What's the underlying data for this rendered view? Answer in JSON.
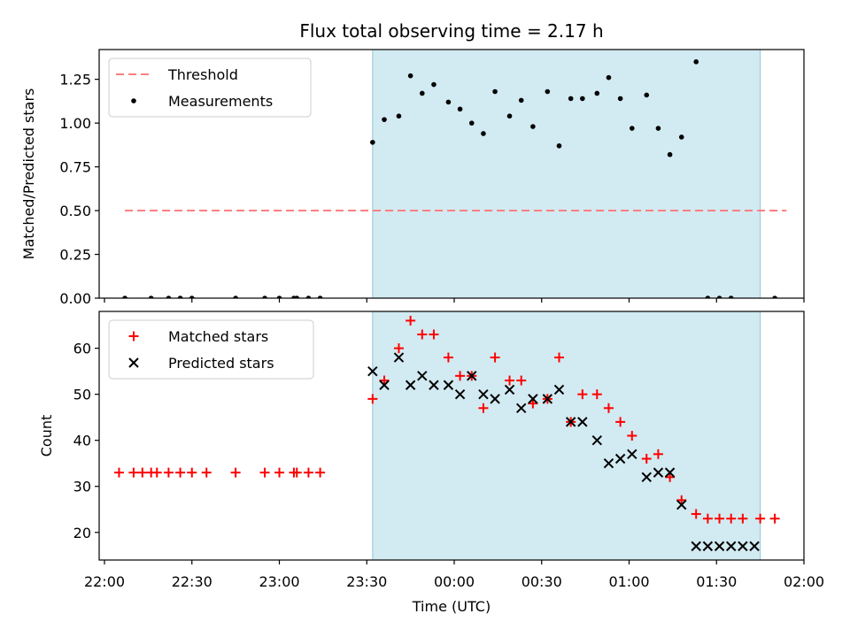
{
  "title": "Flux total observing time = 2.17 h",
  "chart_data": [
    {
      "type": "scatter",
      "panel": "top",
      "ylabel": "Matched/Predicted stars",
      "xlabel": "",
      "ylim": [
        0,
        1.42
      ],
      "yticks": [
        "0.00",
        "0.25",
        "0.50",
        "0.75",
        "1.00",
        "1.25"
      ],
      "ytick_values": [
        0,
        0.25,
        0.5,
        0.75,
        1.0,
        1.25
      ],
      "legend_position": "top-left",
      "legend": [
        "Threshold",
        "Measurements"
      ],
      "threshold": {
        "name": "Threshold",
        "value": 0.5,
        "x_start": "22:07",
        "x_end": "01:54",
        "color": "#ff7f7f",
        "style": "dashed"
      },
      "shaded_interval": {
        "x_start": "23:32",
        "x_end": "01:45",
        "color": "#add8e6"
      },
      "series": [
        {
          "name": "Measurements",
          "marker": "dot",
          "color": "#000000",
          "x": [
            "22:07",
            "22:16",
            "22:22",
            "22:26",
            "22:30",
            "22:45",
            "22:55",
            "23:00",
            "23:05",
            "23:06",
            "23:10",
            "23:14",
            "23:32",
            "23:36",
            "23:41",
            "23:45",
            "23:49",
            "23:53",
            "23:58",
            "00:02",
            "00:06",
            "00:10",
            "00:14",
            "00:19",
            "00:23",
            "00:27",
            "00:32",
            "00:36",
            "00:40",
            "00:44",
            "00:49",
            "00:53",
            "00:57",
            "01:01",
            "01:06",
            "01:10",
            "01:14",
            "01:18",
            "01:23",
            "01:27",
            "01:31",
            "01:35",
            "01:50"
          ],
          "y": [
            0,
            0,
            0,
            0,
            0,
            0,
            0,
            0,
            0,
            0,
            0,
            0,
            0.89,
            1.02,
            1.04,
            1.27,
            1.17,
            1.22,
            1.12,
            1.08,
            1.0,
            0.94,
            1.18,
            1.04,
            1.13,
            0.98,
            1.18,
            0.87,
            1.14,
            1.14,
            1.17,
            1.26,
            1.14,
            0.97,
            1.16,
            0.97,
            0.82,
            0.92,
            1.35,
            0,
            0,
            0,
            0
          ]
        }
      ]
    },
    {
      "type": "scatter",
      "panel": "bottom",
      "ylabel": "Count",
      "xlabel": "Time (UTC)",
      "ylim": [
        14,
        68
      ],
      "yticks": [
        "20",
        "30",
        "40",
        "50",
        "60"
      ],
      "ytick_values": [
        20,
        30,
        40,
        50,
        60
      ],
      "xlim": [
        "22:00",
        "02:00"
      ],
      "xticks": [
        "22:00",
        "22:30",
        "23:00",
        "23:30",
        "00:00",
        "00:30",
        "01:00",
        "01:30",
        "02:00"
      ],
      "legend_position": "top-left",
      "legend": [
        "Matched stars",
        "Predicted stars"
      ],
      "shaded_interval": {
        "x_start": "23:32",
        "x_end": "01:45",
        "color": "#add8e6"
      },
      "series": [
        {
          "name": "Matched stars",
          "marker": "plus",
          "color": "#ff0000",
          "x": [
            "22:05",
            "22:10",
            "22:13",
            "22:16",
            "22:18",
            "22:22",
            "22:26",
            "22:30",
            "22:35",
            "22:45",
            "22:55",
            "23:00",
            "23:05",
            "23:06",
            "23:10",
            "23:14",
            "23:32",
            "23:36",
            "23:41",
            "23:45",
            "23:49",
            "23:53",
            "23:58",
            "00:02",
            "00:06",
            "00:10",
            "00:14",
            "00:19",
            "00:23",
            "00:27",
            "00:32",
            "00:36",
            "00:40",
            "00:44",
            "00:49",
            "00:53",
            "00:57",
            "01:01",
            "01:06",
            "01:10",
            "01:14",
            "01:18",
            "01:23",
            "01:27",
            "01:31",
            "01:35",
            "01:39",
            "01:45",
            "01:50"
          ],
          "y": [
            33,
            33,
            33,
            33,
            33,
            33,
            33,
            33,
            33,
            33,
            33,
            33,
            33,
            33,
            33,
            33,
            49,
            53,
            60,
            66,
            63,
            63,
            58,
            54,
            54,
            47,
            58,
            53,
            53,
            48,
            49,
            58,
            44,
            50,
            50,
            47,
            44,
            41,
            36,
            37,
            32,
            27,
            24,
            23,
            23,
            23,
            23,
            23,
            23
          ]
        },
        {
          "name": "Predicted stars",
          "marker": "x",
          "color": "#000000",
          "x": [
            "23:32",
            "23:36",
            "23:41",
            "23:45",
            "23:49",
            "23:53",
            "23:58",
            "00:02",
            "00:06",
            "00:10",
            "00:14",
            "00:19",
            "00:23",
            "00:27",
            "00:32",
            "00:36",
            "00:40",
            "00:44",
            "00:49",
            "00:53",
            "00:57",
            "01:01",
            "01:06",
            "01:10",
            "01:14",
            "01:18",
            "01:23",
            "01:27",
            "01:31",
            "01:35",
            "01:39",
            "01:43"
          ],
          "y": [
            55,
            52,
            58,
            52,
            54,
            52,
            52,
            50,
            54,
            50,
            49,
            51,
            47,
            49,
            49,
            51,
            44,
            44,
            40,
            35,
            36,
            37,
            32,
            33,
            33,
            26,
            17,
            17,
            17,
            17,
            17,
            17
          ]
        }
      ]
    }
  ]
}
